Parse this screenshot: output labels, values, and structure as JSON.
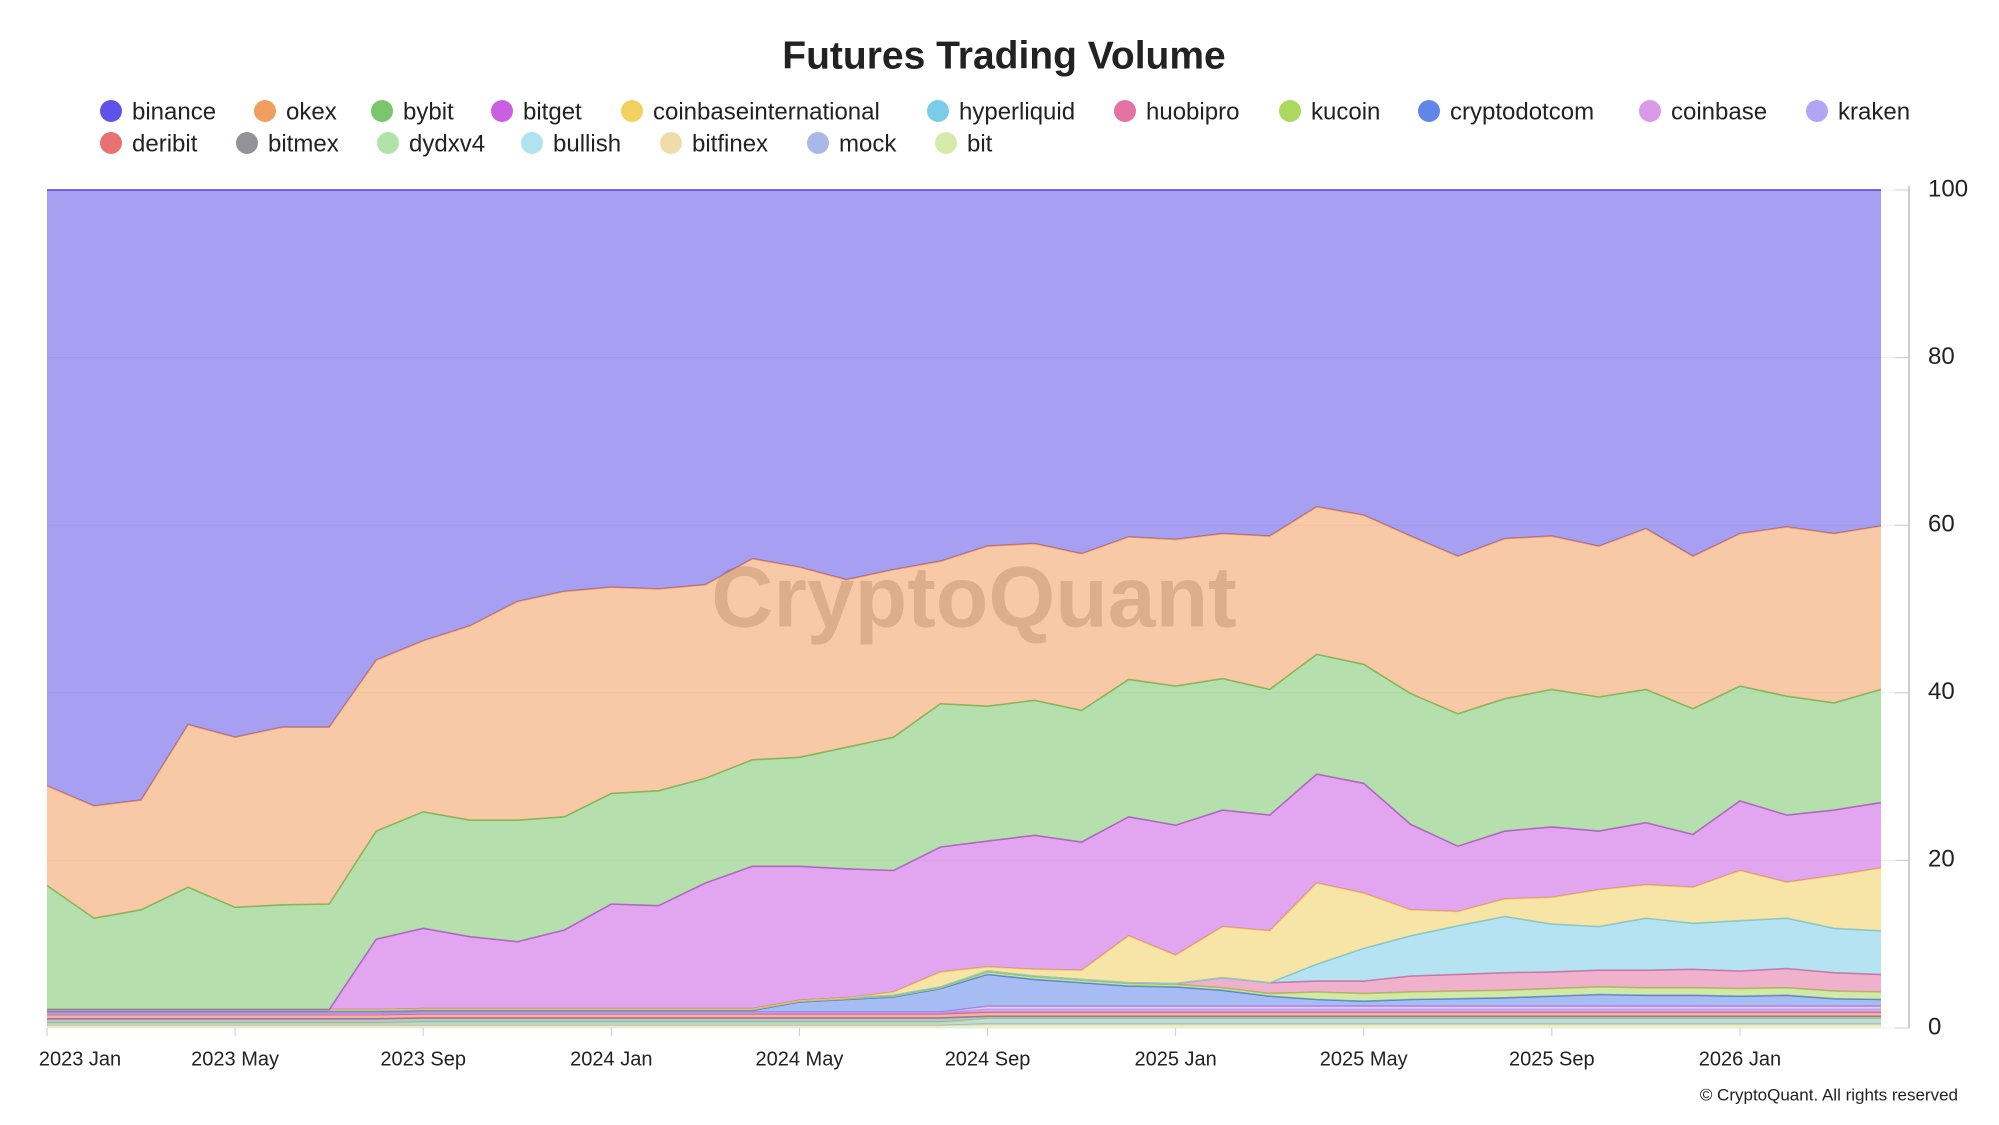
{
  "chart_data": {
    "type": "area",
    "stacked": true,
    "title": "Futures Trading Volume",
    "watermark": "CryptoQuant",
    "credit": "© CryptoQuant. All rights reserved",
    "x": [
      "2023-01",
      "2023-02",
      "2023-03",
      "2023-04",
      "2023-05",
      "2023-06",
      "2023-07",
      "2023-08",
      "2023-09",
      "2023-10",
      "2023-11",
      "2023-12",
      "2024-01",
      "2024-02",
      "2024-03",
      "2024-04",
      "2024-05",
      "2024-06",
      "2024-07",
      "2024-08",
      "2024-09",
      "2024-10",
      "2024-11",
      "2024-12",
      "2025-01",
      "2025-02",
      "2025-03",
      "2025-04",
      "2025-05",
      "2025-06",
      "2025-07",
      "2025-08",
      "2025-09",
      "2025-10",
      "2025-11",
      "2025-12",
      "2026-01",
      "2026-02",
      "2026-03",
      "2026-04"
    ],
    "xlim": [
      "2023-01",
      "2026-04"
    ],
    "xticks": [
      {
        "value": "2023-01",
        "label": "2023 Jan"
      },
      {
        "value": "2023-05",
        "label": "2023 May"
      },
      {
        "value": "2023-09",
        "label": "2023 Sep"
      },
      {
        "value": "2024-01",
        "label": "2024 Jan"
      },
      {
        "value": "2024-05",
        "label": "2024 May"
      },
      {
        "value": "2024-09",
        "label": "2024 Sep"
      },
      {
        "value": "2025-01",
        "label": "2025 Jan"
      },
      {
        "value": "2025-05",
        "label": "2025 May"
      },
      {
        "value": "2025-09",
        "label": "2025 Sep"
      },
      {
        "value": "2026-01",
        "label": "2026 Jan"
      }
    ],
    "ylim": [
      0,
      100
    ],
    "yticks": [
      0,
      20,
      40,
      60,
      80,
      100
    ],
    "grid": true,
    "series": [
      {
        "name": "binance",
        "color": "#4d3fe6",
        "values": [
          71.1,
          73.5,
          72.8,
          63.8,
          65.3,
          64.1,
          64.1,
          56.1,
          53.8,
          52.0,
          49.1,
          47.9,
          47.4,
          47.6,
          47.1,
          44.0,
          45.0,
          46.5,
          45.3,
          44.3,
          42.5,
          42.2,
          43.4,
          41.4,
          41.7,
          41.0,
          41.3,
          37.8,
          38.8,
          41.3,
          43.7,
          41.6,
          41.3,
          42.5,
          40.4,
          43.7,
          41.0,
          40.2,
          41.0,
          40.1
        ]
      },
      {
        "name": "okex",
        "color": "#f0944f",
        "values": [
          11.9,
          13.4,
          13.1,
          19.4,
          20.3,
          21.2,
          21.1,
          20.4,
          20.4,
          23.2,
          26.1,
          26.9,
          24.6,
          24.1,
          23.1,
          24.0,
          22.7,
          20.0,
          20.0,
          17.0,
          19.1,
          18.7,
          18.7,
          17.0,
          17.5,
          17.3,
          18.3,
          17.6,
          17.8,
          18.8,
          18.8,
          19.1,
          18.3,
          18.0,
          19.2,
          18.2,
          18.2,
          20.2,
          20.2,
          19.5
        ]
      },
      {
        "name": "bybit",
        "color": "#6cc05a",
        "values": [
          14.8,
          10.9,
          11.9,
          14.6,
          12.2,
          12.5,
          12.6,
          12.9,
          13.9,
          13.9,
          14.5,
          13.5,
          13.2,
          13.7,
          12.5,
          12.7,
          13.0,
          14.5,
          15.9,
          17.1,
          16.1,
          16.1,
          15.7,
          16.4,
          16.6,
          15.7,
          15.0,
          14.3,
          14.2,
          15.6,
          15.8,
          15.8,
          16.4,
          16.0,
          15.9,
          15.0,
          13.7,
          14.2,
          12.8,
          13.5
        ]
      },
      {
        "name": "bitget",
        "color": "#c44ee0",
        "values": [
          0,
          0,
          0,
          0,
          0,
          0,
          0,
          8.4,
          9.6,
          8.6,
          8.0,
          9.4,
          12.5,
          12.3,
          15.0,
          17.0,
          16.0,
          15.4,
          14.5,
          14.9,
          15.0,
          16.0,
          15.3,
          14.2,
          15.5,
          13.9,
          13.8,
          13.0,
          13.1,
          10.2,
          7.8,
          8.1,
          8.4,
          7.0,
          7.4,
          6.3,
          8.3,
          8.0,
          7.8,
          7.8
        ]
      },
      {
        "name": "coinbaseinternational",
        "color": "#f0cc4f",
        "values": [
          0,
          0,
          0,
          0,
          0,
          0,
          0,
          0,
          0,
          0,
          0,
          0,
          0,
          0,
          0,
          0,
          0,
          0,
          0.4,
          1.8,
          0.5,
          0.8,
          1.1,
          5.6,
          3.4,
          6.1,
          6.2,
          9.7,
          6.6,
          3.1,
          1.7,
          2.1,
          3.2,
          4.4,
          4.0,
          4.3,
          6.0,
          4.3,
          6.3,
          7.5
        ]
      },
      {
        "name": "hyperliquid",
        "color": "#6cc8e6",
        "values": [
          0,
          0,
          0,
          0,
          0,
          0,
          0,
          0,
          0,
          0,
          0,
          0,
          0,
          0,
          0,
          0,
          0,
          0,
          0,
          0,
          0,
          0,
          0,
          0,
          0,
          0,
          0,
          2.0,
          3.9,
          4.8,
          5.8,
          6.7,
          5.7,
          5.2,
          6.2,
          5.5,
          6.0,
          6.0,
          5.3,
          5.2
        ]
      },
      {
        "name": "huobipro",
        "color": "#e0649a",
        "values": [
          0.1,
          0.1,
          0.1,
          0.1,
          0.1,
          0.1,
          0.1,
          0.1,
          0.1,
          0.1,
          0.1,
          0.1,
          0.1,
          0.1,
          0.1,
          0.1,
          0.1,
          0.1,
          0.1,
          0.1,
          0.1,
          0.1,
          0.1,
          0.1,
          0.1,
          1.2,
          1.3,
          1.3,
          1.5,
          1.9,
          2.0,
          2.1,
          2.0,
          2.0,
          2.1,
          2.2,
          2.1,
          2.3,
          2.2,
          2.1
        ]
      },
      {
        "name": "kucoin",
        "color": "#a3d44f",
        "values": [
          0.1,
          0.1,
          0.1,
          0.1,
          0.1,
          0.1,
          0.1,
          0.1,
          0.1,
          0.1,
          0.1,
          0.1,
          0.1,
          0.1,
          0.1,
          0.1,
          0.1,
          0.1,
          0.1,
          0.1,
          0.3,
          0.3,
          0.3,
          0.3,
          0.3,
          0.3,
          0.3,
          0.9,
          0.9,
          0.9,
          0.9,
          0.9,
          0.9,
          0.9,
          0.9,
          0.9,
          0.9,
          0.9,
          0.9,
          0.9
        ]
      },
      {
        "name": "cryptodotcom",
        "color": "#4f7ae6",
        "values": [
          0.2,
          0.2,
          0.2,
          0.2,
          0.2,
          0.2,
          0.2,
          0.2,
          0.2,
          0.2,
          0.2,
          0.2,
          0.2,
          0.2,
          0.2,
          0.2,
          1.2,
          1.5,
          1.8,
          2.8,
          3.8,
          3.2,
          2.8,
          2.4,
          2.3,
          1.9,
          1.2,
          0.8,
          0.6,
          0.8,
          0.9,
          1.0,
          1.2,
          1.4,
          1.3,
          1.3,
          1.2,
          1.3,
          0.9,
          0.8
        ]
      },
      {
        "name": "coinbase",
        "color": "#d68fe6",
        "values": [
          0.1,
          0.1,
          0.1,
          0.1,
          0.1,
          0.1,
          0.1,
          0.1,
          0.1,
          0.1,
          0.1,
          0.1,
          0.1,
          0.1,
          0.1,
          0.1,
          0.1,
          0.1,
          0.1,
          0.1,
          0.4,
          0.4,
          0.4,
          0.4,
          0.4,
          0.4,
          0.4,
          0.4,
          0.4,
          0.4,
          0.4,
          0.4,
          0.4,
          0.4,
          0.4,
          0.4,
          0.4,
          0.4,
          0.4,
          0.4
        ]
      },
      {
        "name": "kraken",
        "color": "#a89cf2",
        "values": [
          0.1,
          0.1,
          0.1,
          0.1,
          0.1,
          0.1,
          0.1,
          0.1,
          0.1,
          0.1,
          0.1,
          0.1,
          0.1,
          0.1,
          0.1,
          0.1,
          0.1,
          0.1,
          0.1,
          0.1,
          0.3,
          0.3,
          0.3,
          0.3,
          0.3,
          0.3,
          0.3,
          0.3,
          0.3,
          0.3,
          0.3,
          0.3,
          0.3,
          0.3,
          0.3,
          0.3,
          0.3,
          0.3,
          0.3,
          0.3
        ]
      },
      {
        "name": "deribit",
        "color": "#e66262",
        "values": [
          0.5,
          0.5,
          0.5,
          0.5,
          0.5,
          0.5,
          0.5,
          0.5,
          0.5,
          0.5,
          0.5,
          0.5,
          0.5,
          0.5,
          0.5,
          0.5,
          0.5,
          0.5,
          0.5,
          0.5,
          0.5,
          0.5,
          0.5,
          0.5,
          0.5,
          0.5,
          0.5,
          0.5,
          0.5,
          0.5,
          0.5,
          0.5,
          0.5,
          0.5,
          0.5,
          0.5,
          0.5,
          0.5,
          0.5,
          0.5
        ]
      },
      {
        "name": "bitmex",
        "color": "#868690",
        "values": [
          0.5,
          0.5,
          0.5,
          0.5,
          0.5,
          0.5,
          0.5,
          0.5,
          0.5,
          0.5,
          0.5,
          0.5,
          0.5,
          0.5,
          0.5,
          0.5,
          0.5,
          0.5,
          0.5,
          0.5,
          0.3,
          0.3,
          0.3,
          0.3,
          0.3,
          0.3,
          0.3,
          0.3,
          0.3,
          0.3,
          0.3,
          0.3,
          0.3,
          0.3,
          0.3,
          0.3,
          0.3,
          0.3,
          0.3,
          0.3
        ]
      },
      {
        "name": "dydxv4",
        "color": "#a9e0a0",
        "values": [
          0,
          0,
          0,
          0,
          0,
          0,
          0,
          0,
          0.1,
          0.1,
          0.1,
          0.1,
          0.1,
          0.1,
          0.1,
          0.1,
          0.1,
          0.1,
          0.1,
          0.1,
          0.3,
          0.3,
          0.3,
          0.3,
          0.3,
          0.3,
          0.3,
          0.3,
          0.3,
          0.3,
          0.3,
          0.3,
          0.3,
          0.3,
          0.3,
          0.3,
          0.3,
          0.3,
          0.3,
          0.3
        ]
      },
      {
        "name": "bullish",
        "color": "#a6e0ee",
        "values": [
          0.1,
          0.1,
          0.1,
          0.1,
          0.1,
          0.1,
          0.1,
          0.1,
          0.1,
          0.1,
          0.1,
          0.1,
          0.1,
          0.1,
          0.1,
          0.1,
          0.1,
          0.1,
          0.1,
          0.1,
          0.1,
          0.1,
          0.1,
          0.1,
          0.1,
          0.1,
          0.1,
          0.1,
          0.1,
          0.1,
          0.1,
          0.1,
          0.1,
          0.1,
          0.1,
          0.1,
          0.1,
          0.1,
          0.1,
          0.1
        ]
      },
      {
        "name": "bitfinex",
        "color": "#eed8a0",
        "values": [
          0.1,
          0.1,
          0.1,
          0.1,
          0.1,
          0.1,
          0.1,
          0.1,
          0.1,
          0.1,
          0.1,
          0.1,
          0.1,
          0.1,
          0.1,
          0.1,
          0.1,
          0.1,
          0.1,
          0.1,
          0.1,
          0.1,
          0.1,
          0.1,
          0.1,
          0.1,
          0.1,
          0.1,
          0.1,
          0.1,
          0.1,
          0.1,
          0.1,
          0.1,
          0.1,
          0.1,
          0.1,
          0.1,
          0.1,
          0.1
        ]
      },
      {
        "name": "mock",
        "color": "#9fb0e6",
        "values": [
          0.1,
          0.1,
          0.1,
          0.1,
          0.1,
          0.1,
          0.1,
          0.1,
          0.1,
          0.1,
          0.1,
          0.1,
          0.1,
          0.1,
          0.1,
          0.1,
          0.1,
          0.1,
          0.1,
          0.1,
          0.2,
          0.2,
          0.2,
          0.2,
          0.2,
          0.2,
          0.2,
          0.2,
          0.2,
          0.2,
          0.2,
          0.2,
          0.2,
          0.2,
          0.2,
          0.2,
          0.2,
          0.2,
          0.2,
          0.2
        ]
      },
      {
        "name": "bit",
        "color": "#d4e8a0",
        "values": [
          0.3,
          0.3,
          0.3,
          0.3,
          0.3,
          0.3,
          0.3,
          0.3,
          0.3,
          0.3,
          0.3,
          0.3,
          0.3,
          0.3,
          0.3,
          0.3,
          0.3,
          0.3,
          0.3,
          0.3,
          0.4,
          0.4,
          0.4,
          0.4,
          0.4,
          0.4,
          0.4,
          0.4,
          0.4,
          0.4,
          0.4,
          0.4,
          0.4,
          0.4,
          0.4,
          0.4,
          0.4,
          0.4,
          0.4,
          0.4
        ]
      }
    ]
  }
}
